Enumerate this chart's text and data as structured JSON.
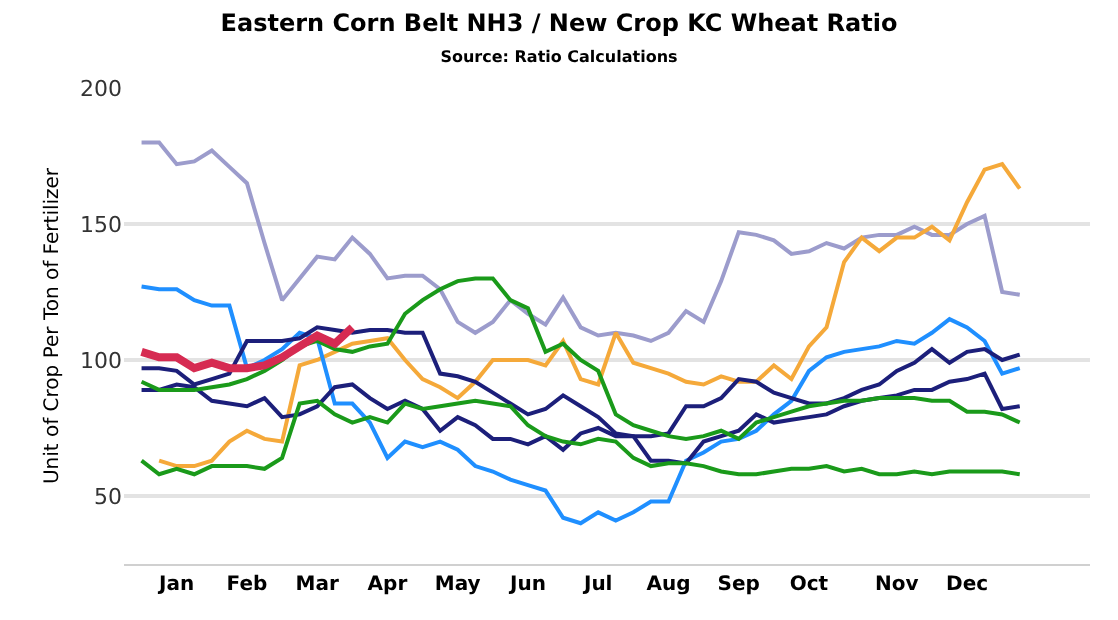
{
  "chart_data": {
    "type": "line",
    "title": "Eastern Corn Belt NH3 / New Crop KC Wheat Ratio",
    "subtitle": "Source: Ratio Calculations",
    "ylabel": "Unit of Crop Per Ton of Fertilizer",
    "categories": [
      null,
      null,
      "Jan",
      null,
      null,
      null,
      "Feb",
      null,
      null,
      null,
      "Mar",
      null,
      null,
      null,
      "Apr",
      null,
      null,
      null,
      "May",
      null,
      null,
      null,
      "Jun",
      null,
      null,
      null,
      "Jul",
      null,
      null,
      null,
      "Aug",
      null,
      null,
      null,
      "Sep",
      null,
      null,
      null,
      "Oct",
      null,
      null,
      null,
      null,
      "Nov",
      null,
      null,
      null,
      "Dec",
      null,
      null,
      null
    ],
    "ylim": [
      25,
      200
    ],
    "yticks": [
      50,
      100,
      150,
      200
    ],
    "grid": "y",
    "marker": "none",
    "line_style": "solid",
    "series": [
      {
        "color": "#9c9ccc",
        "values": [
          180,
          180,
          172,
          173,
          177,
          171,
          165,
          143,
          122,
          130,
          138,
          137,
          145,
          139,
          130,
          131,
          131,
          126,
          114,
          110,
          114,
          122,
          117,
          113,
          123,
          112,
          109,
          110,
          109,
          107,
          110,
          118,
          114,
          129,
          147,
          146,
          144,
          139,
          140,
          143,
          141,
          145,
          146,
          146,
          149,
          146,
          146,
          150,
          153,
          125,
          124
        ]
      },
      {
        "color": "#f5a93a",
        "values": [
          null,
          63,
          61,
          61,
          63,
          70,
          74,
          71,
          70,
          98,
          100,
          103,
          106,
          107,
          108,
          100,
          93,
          90,
          86,
          92,
          100,
          100,
          100,
          98,
          107,
          93,
          91,
          110,
          99,
          97,
          95,
          92,
          91,
          94,
          92,
          92,
          98,
          93,
          105,
          112,
          136,
          145,
          140,
          145,
          145,
          149,
          144,
          158,
          170,
          172,
          163
        ]
      },
      {
        "color": "#1f8fff",
        "values": [
          127,
          126,
          126,
          122,
          120,
          120,
          97,
          100,
          104,
          110,
          108,
          84,
          84,
          77,
          64,
          70,
          68,
          70,
          67,
          61,
          59,
          56,
          54,
          52,
          42,
          40,
          44,
          41,
          44,
          48,
          48,
          63,
          66,
          70,
          71,
          74,
          80,
          85,
          96,
          101,
          103,
          104,
          105,
          107,
          106,
          110,
          115,
          112,
          107,
          95,
          97
        ]
      },
      {
        "color": "#1c1f7a",
        "values": [
          97,
          97,
          96,
          91,
          93,
          95,
          107,
          107,
          107,
          108,
          112,
          111,
          110,
          111,
          111,
          110,
          110,
          95,
          94,
          92,
          88,
          84,
          80,
          82,
          87,
          83,
          79,
          73,
          72,
          72,
          73,
          83,
          83,
          86,
          93,
          92,
          88,
          86,
          84,
          84,
          86,
          89,
          91,
          96,
          99,
          104,
          99,
          103,
          104,
          100,
          102
        ]
      },
      {
        "color": "#1c1f7a",
        "values": [
          89,
          89,
          91,
          90,
          85,
          84,
          83,
          86,
          79,
          80,
          83,
          90,
          91,
          86,
          82,
          85,
          82,
          74,
          79,
          76,
          71,
          71,
          69,
          72,
          67,
          73,
          75,
          72,
          72,
          63,
          63,
          62,
          70,
          72,
          74,
          80,
          77,
          78,
          79,
          80,
          83,
          85,
          86,
          87,
          89,
          89,
          92,
          93,
          95,
          82,
          83
        ]
      },
      {
        "color": "#1a9a1a",
        "values": [
          92,
          89,
          89,
          89,
          90,
          91,
          93,
          96,
          100,
          105,
          107,
          104,
          103,
          105,
          106,
          117,
          122,
          126,
          129,
          130,
          130,
          122,
          119,
          103,
          106,
          100,
          96,
          80,
          76,
          74,
          72,
          71,
          72,
          74,
          71,
          77,
          79,
          81,
          83,
          84,
          85,
          85,
          86,
          86,
          86,
          85,
          85,
          81,
          81,
          80,
          77
        ]
      },
      {
        "color": "#1a9a1a",
        "values": [
          63,
          58,
          60,
          58,
          61,
          61,
          61,
          60,
          64,
          84,
          85,
          80,
          77,
          79,
          77,
          84,
          82,
          83,
          84,
          85,
          84,
          83,
          76,
          72,
          70,
          69,
          71,
          70,
          64,
          61,
          62,
          62,
          61,
          59,
          58,
          58,
          59,
          60,
          60,
          61,
          59,
          60,
          58,
          58,
          59,
          58,
          59,
          59,
          59,
          59,
          58
        ]
      },
      {
        "color": "#d62b52",
        "values": [
          103,
          101,
          101,
          97,
          99,
          97,
          97,
          98,
          101,
          105,
          109,
          106,
          112,
          null,
          null,
          null,
          null,
          null,
          null,
          null,
          null,
          null,
          null,
          null,
          null,
          null,
          null,
          null,
          null,
          null,
          null,
          null,
          null,
          null,
          null,
          null,
          null,
          null,
          null,
          null,
          null,
          null,
          null,
          null,
          null,
          null,
          null,
          null,
          null,
          null,
          null
        ]
      }
    ]
  }
}
